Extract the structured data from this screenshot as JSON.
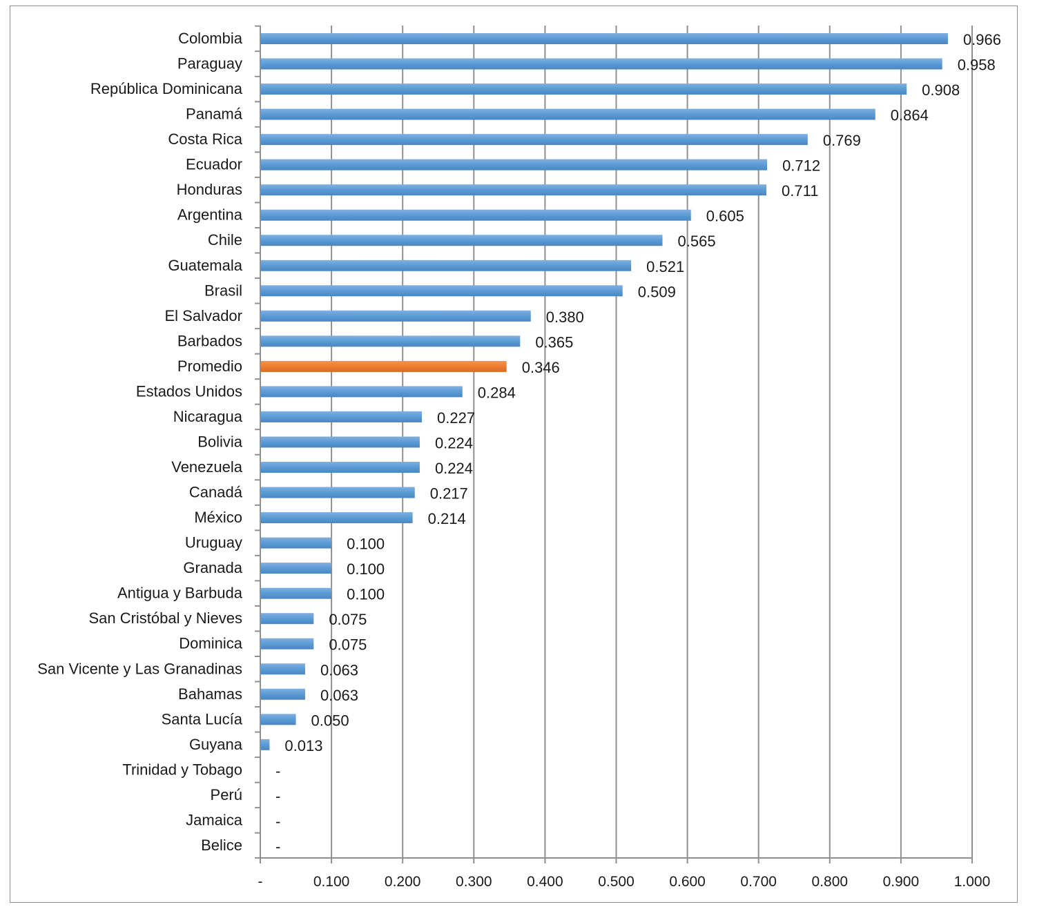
{
  "chart_data": {
    "type": "bar",
    "orientation": "horizontal",
    "categories": [
      "Colombia",
      "Paraguay",
      "República Dominicana",
      "Panamá",
      "Costa Rica",
      "Ecuador",
      "Honduras",
      "Argentina",
      "Chile",
      "Guatemala",
      "Brasil",
      "El Salvador",
      "Barbados",
      "Promedio",
      "Estados Unidos",
      "Nicaragua",
      "Bolivia",
      "Venezuela",
      "Canadá",
      "México",
      "Uruguay",
      "Granada",
      "Antigua y Barbuda",
      "San Cristóbal y Nieves",
      "Dominica",
      "San Vicente y Las Granadinas",
      "Bahamas",
      "Santa Lucía",
      "Guyana",
      "Trinidad y Tobago",
      "Perú",
      "Jamaica",
      "Belice"
    ],
    "values": [
      0.966,
      0.958,
      0.908,
      0.864,
      0.769,
      0.712,
      0.711,
      0.605,
      0.565,
      0.521,
      0.509,
      0.38,
      0.365,
      0.346,
      0.284,
      0.227,
      0.224,
      0.224,
      0.217,
      0.214,
      0.1,
      0.1,
      0.1,
      0.075,
      0.075,
      0.063,
      0.063,
      0.05,
      0.013,
      0,
      0,
      0,
      0
    ],
    "value_labels": [
      "0.966",
      "0.958",
      "0.908",
      "0.864",
      "0.769",
      "0.712",
      "0.711",
      "0.605",
      "0.565",
      "0.521",
      "0.509",
      "0.380",
      "0.365",
      "0.346",
      "0.284",
      "0.227",
      "0.224",
      "0.224",
      "0.217",
      "0.214",
      "0.100",
      "0.100",
      "0.100",
      "0.075",
      "0.075",
      "0.063",
      "0.063",
      "0.050",
      "0.013",
      "-",
      "-",
      "-",
      "-"
    ],
    "xlim": [
      0,
      1.0
    ],
    "x_ticks": [
      0,
      0.1,
      0.2,
      0.3,
      0.4,
      0.5,
      0.6,
      0.7,
      0.8,
      0.9,
      1.0
    ],
    "x_tick_labels": [
      "-",
      "0.100",
      "0.200",
      "0.300",
      "0.400",
      "0.500",
      "0.600",
      "0.700",
      "0.800",
      "0.900",
      "1.000"
    ],
    "grid": "vertical",
    "title": "",
    "xlabel": "",
    "ylabel": "",
    "legend": "none",
    "colors": {
      "bar": "#5b9bd5",
      "highlight": "#ed7d31",
      "highlight_category": "Promedio",
      "grid": "#8f8f8f"
    }
  }
}
